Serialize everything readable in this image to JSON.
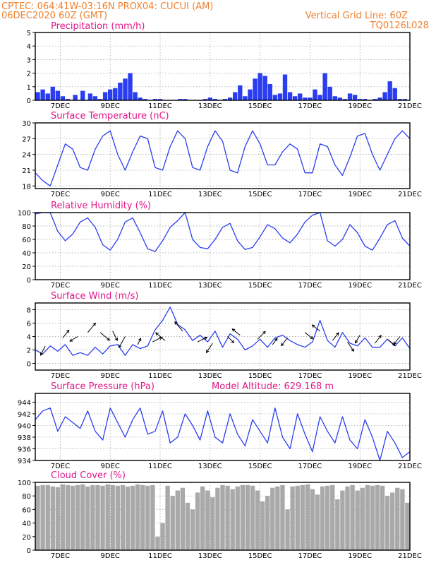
{
  "header": {
    "line1_left": "CPTEC:  064:41W-03:16N  PROX04: CUCUI (AM)",
    "line2_left": "06DEC2020 60Z (GMT)",
    "line1_right": "Vertical Grid Line: 60Z",
    "line2_right": "TQ0126L028"
  },
  "x_ticks": [
    "7DEC",
    "9DEC",
    "11DEC",
    "13DEC",
    "15DEC",
    "17DEC",
    "19DEC",
    "21DEC"
  ],
  "chart_data": [
    {
      "type": "bar",
      "title": "Precipitation (mm/h)",
      "ylim": [
        0,
        5
      ],
      "y_ticks": [
        "0",
        "1",
        "2",
        "3",
        "4",
        "5"
      ],
      "x_range": [
        6.0,
        21.0
      ],
      "color": "#2a3df0",
      "series": [
        {
          "x": [
            6.1,
            6.3,
            6.5,
            6.7,
            6.9,
            7.1,
            7.3,
            7.6,
            7.9,
            8.2,
            8.4,
            8.6,
            8.8,
            9.0,
            9.2,
            9.4,
            9.6,
            9.8,
            10.0,
            10.2,
            10.4,
            10.6,
            10.8,
            11.0,
            11.2,
            11.4,
            11.6,
            11.8,
            12.0,
            12.2,
            12.4,
            12.6,
            12.8,
            13.0,
            13.2,
            13.4,
            13.6,
            13.8,
            14.0,
            14.2,
            14.4,
            14.6,
            14.8,
            15.0,
            15.2,
            15.4,
            15.6,
            15.8,
            16.0,
            16.2,
            16.4,
            16.6,
            16.8,
            17.0,
            17.2,
            17.4,
            17.6,
            17.8,
            18.0,
            18.2,
            18.4,
            18.6,
            18.8,
            19.0,
            19.2,
            19.4,
            19.6,
            19.8,
            20.0,
            20.2,
            20.4,
            20.6,
            20.8
          ],
          "values": [
            0.6,
            0.8,
            0.5,
            1.0,
            0.7,
            0.3,
            0.1,
            0.4,
            0.7,
            0.5,
            0.3,
            0.1,
            0.6,
            0.8,
            0.9,
            1.3,
            1.6,
            2.0,
            0.6,
            0.2,
            0.1,
            0.0,
            0.1,
            0.1,
            0.0,
            0.0,
            0.0,
            0.1,
            0.1,
            0.0,
            0.0,
            0.0,
            0.1,
            0.2,
            0.1,
            0.0,
            0.1,
            0.2,
            0.6,
            1.1,
            0.3,
            0.8,
            1.6,
            2.0,
            1.8,
            1.2,
            0.4,
            0.5,
            1.9,
            0.6,
            0.3,
            0.5,
            0.2,
            0.2,
            0.8,
            0.4,
            2.0,
            1.0,
            0.3,
            0.2,
            0.1,
            0.5,
            0.4,
            0.1,
            0.1,
            0.0,
            0.1,
            0.2,
            0.6,
            1.4,
            0.9,
            0.1,
            0.1
          ]
        }
      ]
    },
    {
      "type": "line",
      "title": "Surface Temperature (nC)",
      "ylim": [
        17.5,
        30
      ],
      "y_ticks": [
        "18",
        "21",
        "24",
        "27",
        "30"
      ],
      "x_range": [
        6.0,
        21.0
      ],
      "color": "#2a3df0",
      "series": [
        {
          "x": [
            6.0,
            6.3,
            6.6,
            6.9,
            7.2,
            7.5,
            7.8,
            8.1,
            8.4,
            8.7,
            9.0,
            9.3,
            9.6,
            9.9,
            10.2,
            10.5,
            10.8,
            11.1,
            11.4,
            11.7,
            12.0,
            12.3,
            12.6,
            12.9,
            13.2,
            13.5,
            13.8,
            14.1,
            14.4,
            14.7,
            15.0,
            15.3,
            15.6,
            15.9,
            16.2,
            16.5,
            16.8,
            17.1,
            17.4,
            17.7,
            18.0,
            18.3,
            18.6,
            18.9,
            19.2,
            19.5,
            19.8,
            20.1,
            20.4,
            20.7,
            21.0
          ],
          "values": [
            20.5,
            19.0,
            18.0,
            22.0,
            26.0,
            25.0,
            21.5,
            21.0,
            25.0,
            27.5,
            28.5,
            24.0,
            21.0,
            24.5,
            27.5,
            27.0,
            21.5,
            21.0,
            25.5,
            28.5,
            27.0,
            21.5,
            21.0,
            25.5,
            28.5,
            26.5,
            21.0,
            20.5,
            25.5,
            28.5,
            26.0,
            22.0,
            22.0,
            24.5,
            26.0,
            25.0,
            20.5,
            20.5,
            26.0,
            25.5,
            22.0,
            20.0,
            23.5,
            27.5,
            28.0,
            24.0,
            21.0,
            24.0,
            27.0,
            28.5,
            27.0
          ]
        }
      ]
    },
    {
      "type": "line",
      "title": "Relative Humidity (%)",
      "ylim": [
        0,
        100
      ],
      "y_ticks": [
        "0",
        "20",
        "40",
        "60",
        "80",
        "100"
      ],
      "x_range": [
        6.0,
        21.0
      ],
      "color": "#2a3df0",
      "series": [
        {
          "x": [
            6.0,
            6.3,
            6.6,
            6.9,
            7.2,
            7.5,
            7.8,
            8.1,
            8.4,
            8.7,
            9.0,
            9.3,
            9.6,
            9.9,
            10.2,
            10.5,
            10.8,
            11.1,
            11.4,
            11.7,
            12.0,
            12.3,
            12.6,
            12.9,
            13.2,
            13.5,
            13.8,
            14.1,
            14.4,
            14.7,
            15.0,
            15.3,
            15.6,
            15.9,
            16.2,
            16.5,
            16.8,
            17.1,
            17.4,
            17.7,
            18.0,
            18.3,
            18.6,
            18.9,
            19.2,
            19.5,
            19.8,
            20.1,
            20.4,
            20.7,
            21.0
          ],
          "values": [
            98,
            100,
            100,
            72,
            58,
            68,
            86,
            92,
            78,
            52,
            44,
            60,
            86,
            92,
            70,
            46,
            42,
            58,
            78,
            88,
            100,
            60,
            48,
            46,
            60,
            78,
            84,
            58,
            45,
            48,
            64,
            82,
            76,
            62,
            55,
            68,
            86,
            96,
            100,
            58,
            50,
            60,
            82,
            70,
            50,
            44,
            62,
            82,
            88,
            62,
            50
          ]
        }
      ]
    },
    {
      "type": "line",
      "title": "Surface Wind (m/s)",
      "ylim": [
        -1,
        9
      ],
      "y_ticks": [
        "0",
        "2",
        "4",
        "6",
        "8"
      ],
      "x_range": [
        6.0,
        21.0
      ],
      "color": "#2a3df0",
      "series": [
        {
          "x": [
            6.0,
            6.3,
            6.6,
            6.9,
            7.2,
            7.5,
            7.8,
            8.1,
            8.4,
            8.7,
            9.0,
            9.3,
            9.6,
            9.9,
            10.2,
            10.5,
            10.8,
            11.1,
            11.4,
            11.7,
            12.0,
            12.3,
            12.6,
            12.9,
            13.2,
            13.5,
            13.8,
            14.1,
            14.4,
            14.7,
            15.0,
            15.3,
            15.6,
            15.9,
            16.2,
            16.5,
            16.8,
            17.1,
            17.4,
            17.7,
            18.0,
            18.3,
            18.6,
            18.9,
            19.2,
            19.5,
            19.8,
            20.1,
            20.4,
            20.7,
            21.0
          ],
          "values": [
            2.0,
            1.4,
            2.6,
            1.8,
            2.8,
            1.2,
            1.6,
            1.2,
            2.4,
            1.4,
            2.6,
            2.8,
            1.2,
            2.8,
            2.2,
            2.6,
            5.0,
            6.4,
            8.4,
            5.8,
            5.0,
            3.4,
            4.2,
            3.2,
            4.8,
            2.4,
            4.4,
            3.6,
            2.0,
            2.6,
            3.6,
            2.4,
            3.8,
            4.2,
            3.4,
            2.8,
            2.4,
            3.2,
            6.4,
            3.4,
            2.4,
            4.6,
            3.0,
            2.6,
            3.8,
            2.4,
            2.4,
            3.6,
            2.6,
            3.8,
            2.2
          ]
        }
      ],
      "vectors": {
        "x": [
          6.4,
          7.1,
          7.7,
          8.1,
          8.6,
          9.1,
          9.6,
          10.1,
          10.7,
          11.2,
          11.9,
          12.5,
          13.1,
          13.7,
          14.2,
          14.9,
          15.5,
          16.1,
          16.8,
          17.4,
          17.9,
          18.5,
          19.0,
          19.6,
          20.1,
          20.6
        ],
        "y": [
          2.6,
          3.8,
          4.0,
          4.6,
          4.6,
          4.8,
          4.0,
          2.8,
          3.2,
          3.4,
          4.8,
          3.2,
          3.0,
          4.0,
          4.2,
          3.6,
          2.8,
          3.8,
          4.6,
          4.8,
          3.4,
          3.2,
          4.2,
          3.0,
          3.6,
          4.0
        ],
        "u": [
          -0.3,
          0.4,
          -0.5,
          0.5,
          0.6,
          0.3,
          -0.4,
          0.2,
          0.6,
          -0.6,
          -0.5,
          0.6,
          -0.4,
          0.4,
          -0.5,
          0.5,
          0.3,
          -0.4,
          0.5,
          -0.5,
          0.4,
          0.4,
          -0.3,
          0.4,
          0.5,
          -0.4
        ],
        "v": [
          -0.6,
          0.5,
          -0.3,
          0.6,
          -0.5,
          -0.6,
          -0.7,
          0.4,
          0.3,
          0.5,
          0.6,
          0.3,
          -0.6,
          -0.4,
          0.4,
          0.5,
          0.4,
          -0.5,
          -0.4,
          0.4,
          0.5,
          -0.6,
          -0.5,
          0.5,
          -0.4,
          -0.5
        ]
      }
    },
    {
      "type": "line",
      "title": "Surface Pressure (hPa)",
      "annotation": "Model Altitude: 629.168 m",
      "ylim": [
        934,
        945.5
      ],
      "y_ticks": [
        "934",
        "936",
        "938",
        "940",
        "942",
        "944"
      ],
      "x_range": [
        6.0,
        21.0
      ],
      "color": "#2a3df0",
      "series": [
        {
          "x": [
            6.0,
            6.3,
            6.6,
            6.9,
            7.2,
            7.5,
            7.8,
            8.1,
            8.4,
            8.7,
            9.0,
            9.3,
            9.6,
            9.9,
            10.2,
            10.5,
            10.8,
            11.1,
            11.4,
            11.7,
            12.0,
            12.3,
            12.6,
            12.9,
            13.2,
            13.5,
            13.8,
            14.1,
            14.4,
            14.7,
            15.0,
            15.3,
            15.6,
            15.9,
            16.2,
            16.5,
            16.8,
            17.1,
            17.4,
            17.7,
            18.0,
            18.3,
            18.6,
            18.9,
            19.2,
            19.5,
            19.8,
            20.1,
            20.4,
            20.7,
            21.0
          ],
          "values": [
            941.0,
            942.5,
            943.0,
            939.0,
            941.5,
            940.5,
            939.5,
            942.5,
            939.0,
            937.5,
            943.0,
            940.5,
            938.0,
            941.0,
            943.0,
            938.5,
            939.0,
            942.5,
            937.0,
            938.0,
            942.0,
            940.0,
            937.5,
            942.5,
            938.0,
            937.0,
            942.0,
            938.5,
            936.5,
            941.0,
            939.0,
            937.0,
            943.0,
            938.0,
            936.0,
            942.0,
            938.5,
            935.5,
            941.5,
            939.0,
            937.0,
            941.5,
            937.5,
            936.0,
            941.0,
            938.0,
            934.0,
            939.0,
            937.0,
            934.5,
            935.5
          ]
        }
      ]
    },
    {
      "type": "bar",
      "title": "Cloud Cover (%)",
      "ylim": [
        0,
        100
      ],
      "y_ticks": [
        "0",
        "20",
        "40",
        "60",
        "80",
        "100"
      ],
      "x_range": [
        6.0,
        21.0
      ],
      "color": "#a9a9a9",
      "series": [
        {
          "x": [
            6.1,
            6.3,
            6.5,
            6.7,
            6.9,
            7.1,
            7.3,
            7.5,
            7.7,
            7.9,
            8.1,
            8.3,
            8.5,
            8.7,
            8.9,
            9.1,
            9.3,
            9.5,
            9.7,
            9.9,
            10.1,
            10.3,
            10.5,
            10.7,
            10.9,
            11.1,
            11.3,
            11.5,
            11.7,
            11.9,
            12.1,
            12.3,
            12.5,
            12.7,
            12.9,
            13.1,
            13.3,
            13.5,
            13.7,
            13.9,
            14.1,
            14.3,
            14.5,
            14.7,
            14.9,
            15.1,
            15.3,
            15.5,
            15.7,
            15.9,
            16.1,
            16.3,
            16.5,
            16.7,
            16.9,
            17.1,
            17.3,
            17.5,
            17.7,
            17.9,
            18.1,
            18.3,
            18.5,
            18.7,
            18.9,
            19.1,
            19.3,
            19.5,
            19.7,
            19.9,
            20.1,
            20.3,
            20.5,
            20.7,
            20.9
          ],
          "values": [
            95,
            96,
            96,
            94,
            93,
            97,
            96,
            95,
            96,
            97,
            94,
            96,
            96,
            95,
            97,
            96,
            95,
            96,
            94,
            95,
            97,
            96,
            95,
            96,
            20,
            40,
            95,
            80,
            88,
            92,
            70,
            60,
            85,
            94,
            88,
            78,
            92,
            96,
            95,
            90,
            94,
            96,
            96,
            95,
            88,
            72,
            80,
            92,
            94,
            96,
            60,
            94,
            95,
            96,
            97,
            90,
            82,
            94,
            95,
            96,
            75,
            88,
            94,
            96,
            88,
            92,
            96,
            95,
            96,
            95,
            80,
            85,
            92,
            90,
            70
          ]
        }
      ]
    }
  ]
}
